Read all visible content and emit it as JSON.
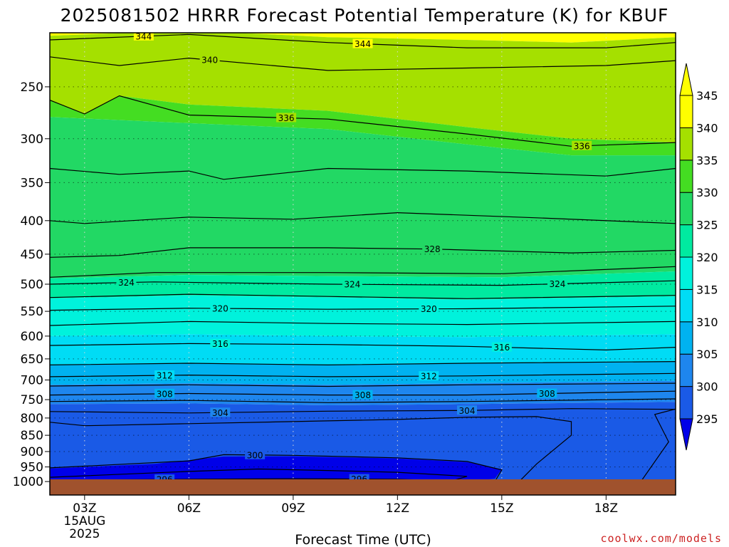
{
  "chart_data": {
    "type": "contour",
    "title": "2025081502 HRRR Forecast Potential Temperature (K) for KBUF",
    "xlabel": "Forecast Time (UTC)",
    "ylabel": "",
    "credit": "coolwx.com/models",
    "credit_color": "#cc2222",
    "ground_color": "#a0522d",
    "x_ticks": [
      "03Z",
      "06Z",
      "09Z",
      "12Z",
      "15Z",
      "18Z"
    ],
    "x_hours": [
      3,
      6,
      9,
      12,
      15,
      18
    ],
    "x_range_hours": [
      2,
      20
    ],
    "x_sublabels": [
      "15AUG",
      "2025"
    ],
    "y_ticks": [
      250,
      300,
      350,
      400,
      450,
      500,
      550,
      600,
      650,
      700,
      750,
      800,
      850,
      900,
      950,
      1000
    ],
    "y_range_hpa": [
      200,
      1000
    ],
    "colorbar": {
      "levels": [
        295,
        300,
        305,
        310,
        315,
        320,
        325,
        330,
        335,
        340,
        345
      ],
      "colors": [
        "#0000e8",
        "#1a5ae6",
        "#1e86ee",
        "#00b2f0",
        "#00dcf5",
        "#00f2dc",
        "#00eaa0",
        "#22d864",
        "#44dd22",
        "#a5e000",
        "#ffff00",
        "#ffff00"
      ]
    },
    "contours": [
      {
        "value": 344,
        "label": "344",
        "label_hours": [
          4.7,
          11.0
        ],
        "p": [
          [
            2,
            212
          ],
          [
            6,
            208
          ],
          [
            10,
            214
          ],
          [
            14,
            218
          ],
          [
            18,
            218
          ],
          [
            20,
            214
          ]
        ]
      },
      {
        "value": 340,
        "label": "340",
        "label_hours": [
          6.6
        ],
        "p": [
          [
            2,
            225
          ],
          [
            4,
            232
          ],
          [
            6,
            226
          ],
          [
            10,
            236
          ],
          [
            14,
            234
          ],
          [
            18,
            232
          ],
          [
            20,
            228
          ]
        ]
      },
      {
        "value": 336,
        "label": "336",
        "label_hours": [
          8.8,
          17.3
        ],
        "p": [
          [
            2,
            262
          ],
          [
            3,
            275
          ],
          [
            4,
            258
          ],
          [
            6,
            276
          ],
          [
            10,
            280
          ],
          [
            14,
            295
          ],
          [
            17,
            308
          ],
          [
            20,
            304
          ]
        ]
      },
      {
        "value": 332,
        "label": "",
        "label_hours": [],
        "p": [
          [
            2,
            333
          ],
          [
            4,
            340
          ],
          [
            6,
            336
          ],
          [
            7,
            346
          ],
          [
            10,
            333
          ],
          [
            14,
            336
          ],
          [
            18,
            342
          ],
          [
            20,
            333
          ]
        ]
      },
      {
        "value": 330,
        "label": "",
        "label_hours": [],
        "p": [
          [
            2,
            400
          ],
          [
            3,
            404
          ],
          [
            6,
            395
          ],
          [
            9,
            398
          ],
          [
            12,
            389
          ],
          [
            16,
            396
          ],
          [
            20,
            404
          ]
        ]
      },
      {
        "value": 328,
        "label": "328",
        "label_hours": [
          13.0
        ],
        "p": [
          [
            2,
            455
          ],
          [
            4,
            452
          ],
          [
            6,
            440
          ],
          [
            10,
            440
          ],
          [
            13,
            442
          ],
          [
            17,
            448
          ],
          [
            20,
            444
          ]
        ]
      },
      {
        "value": 326,
        "label": "",
        "label_hours": [],
        "p": [
          [
            2,
            488
          ],
          [
            5,
            480
          ],
          [
            10,
            480
          ],
          [
            15,
            482
          ],
          [
            20,
            470
          ]
        ]
      },
      {
        "value": 324,
        "label": "324",
        "label_hours": [
          4.2,
          10.7,
          16.6
        ],
        "p": [
          [
            2,
            500
          ],
          [
            5,
            496
          ],
          [
            10,
            500
          ],
          [
            15,
            502
          ],
          [
            20,
            494
          ]
        ]
      },
      {
        "value": 322,
        "label": "",
        "label_hours": [],
        "p": [
          [
            2,
            524
          ],
          [
            6,
            518
          ],
          [
            10,
            522
          ],
          [
            14,
            526
          ],
          [
            20,
            520
          ]
        ]
      },
      {
        "value": 320,
        "label": "320",
        "label_hours": [
          6.9,
          12.9
        ],
        "p": [
          [
            2,
            548
          ],
          [
            6,
            544
          ],
          [
            10,
            546
          ],
          [
            14,
            545
          ],
          [
            20,
            540
          ]
        ]
      },
      {
        "value": 318,
        "label": "",
        "label_hours": [],
        "p": [
          [
            2,
            578
          ],
          [
            6,
            570
          ],
          [
            10,
            574
          ],
          [
            14,
            576
          ],
          [
            20,
            570
          ]
        ]
      },
      {
        "value": 316,
        "label": "316",
        "label_hours": [
          6.9,
          15.0
        ],
        "p": [
          [
            2,
            620
          ],
          [
            6,
            616
          ],
          [
            10,
            618
          ],
          [
            14,
            622
          ],
          [
            18,
            630
          ],
          [
            20,
            624
          ]
        ]
      },
      {
        "value": 314,
        "label": "",
        "label_hours": [],
        "p": [
          [
            2,
            664
          ],
          [
            6,
            660
          ],
          [
            10,
            664
          ],
          [
            14,
            660
          ],
          [
            20,
            656
          ]
        ]
      },
      {
        "value": 312,
        "label": "312",
        "label_hours": [
          5.3,
          12.9
        ],
        "p": [
          [
            2,
            692
          ],
          [
            6,
            688
          ],
          [
            10,
            692
          ],
          [
            14,
            690
          ],
          [
            20,
            684
          ]
        ]
      },
      {
        "value": 310,
        "label": "",
        "label_hours": [],
        "p": [
          [
            2,
            715
          ],
          [
            6,
            712
          ],
          [
            10,
            716
          ],
          [
            14,
            712
          ],
          [
            20,
            708
          ]
        ]
      },
      {
        "value": 308,
        "label": "308",
        "label_hours": [
          5.3,
          11.0,
          16.3
        ],
        "p": [
          [
            2,
            738
          ],
          [
            6,
            734
          ],
          [
            10,
            738
          ],
          [
            14,
            738
          ],
          [
            20,
            728
          ]
        ]
      },
      {
        "value": 306,
        "label": "",
        "label_hours": [],
        "p": [
          [
            2,
            755
          ],
          [
            6,
            752
          ],
          [
            10,
            758
          ],
          [
            14,
            755
          ],
          [
            20,
            748
          ]
        ]
      },
      {
        "value": 304,
        "label": "304",
        "label_hours": [
          6.9,
          14.0
        ],
        "p": [
          [
            2,
            782
          ],
          [
            6,
            786
          ],
          [
            10,
            781
          ],
          [
            14,
            779
          ],
          [
            17,
            774
          ],
          [
            20,
            776
          ]
        ]
      },
      {
        "value": 302,
        "label": "",
        "label_hours": [],
        "p": [
          [
            2,
            812
          ],
          [
            3,
            822
          ],
          [
            6,
            816
          ],
          [
            9,
            810
          ],
          [
            12,
            804
          ],
          [
            14,
            798
          ],
          [
            16,
            796
          ],
          [
            17,
            810
          ],
          [
            17,
            850
          ],
          [
            16,
            940
          ],
          [
            15.5,
            1000
          ]
        ],
        "open": true
      },
      {
        "value": 300,
        "label": "300",
        "label_hours": [
          7.9
        ],
        "p": [
          [
            2,
            953
          ],
          [
            6,
            930
          ],
          [
            7,
            910
          ],
          [
            9,
            912
          ],
          [
            12,
            920
          ],
          [
            14,
            932
          ],
          [
            15,
            960
          ],
          [
            14.8,
            1000
          ]
        ],
        "open": true
      },
      {
        "value": 298,
        "label": "",
        "label_hours": [],
        "p": [
          [
            2,
            985
          ],
          [
            6,
            965
          ],
          [
            8,
            957
          ],
          [
            10,
            962
          ],
          [
            12,
            968
          ],
          [
            14,
            982
          ],
          [
            13.5,
            1000
          ]
        ],
        "open": true
      },
      {
        "value": 296,
        "label": "296",
        "label_hours": [
          5.3,
          10.9
        ],
        "p": [
          [
            2,
            995
          ],
          [
            6,
            992
          ],
          [
            9,
            990
          ],
          [
            12,
            992
          ],
          [
            13,
            996
          ],
          [
            13,
            1000
          ]
        ],
        "open": true
      },
      {
        "value": 302,
        "label": "",
        "label_hours": [],
        "p": [
          [
            19,
            1000
          ],
          [
            19.8,
            870
          ],
          [
            19.4,
            790
          ],
          [
            20,
            775
          ]
        ],
        "open": true
      }
    ]
  }
}
